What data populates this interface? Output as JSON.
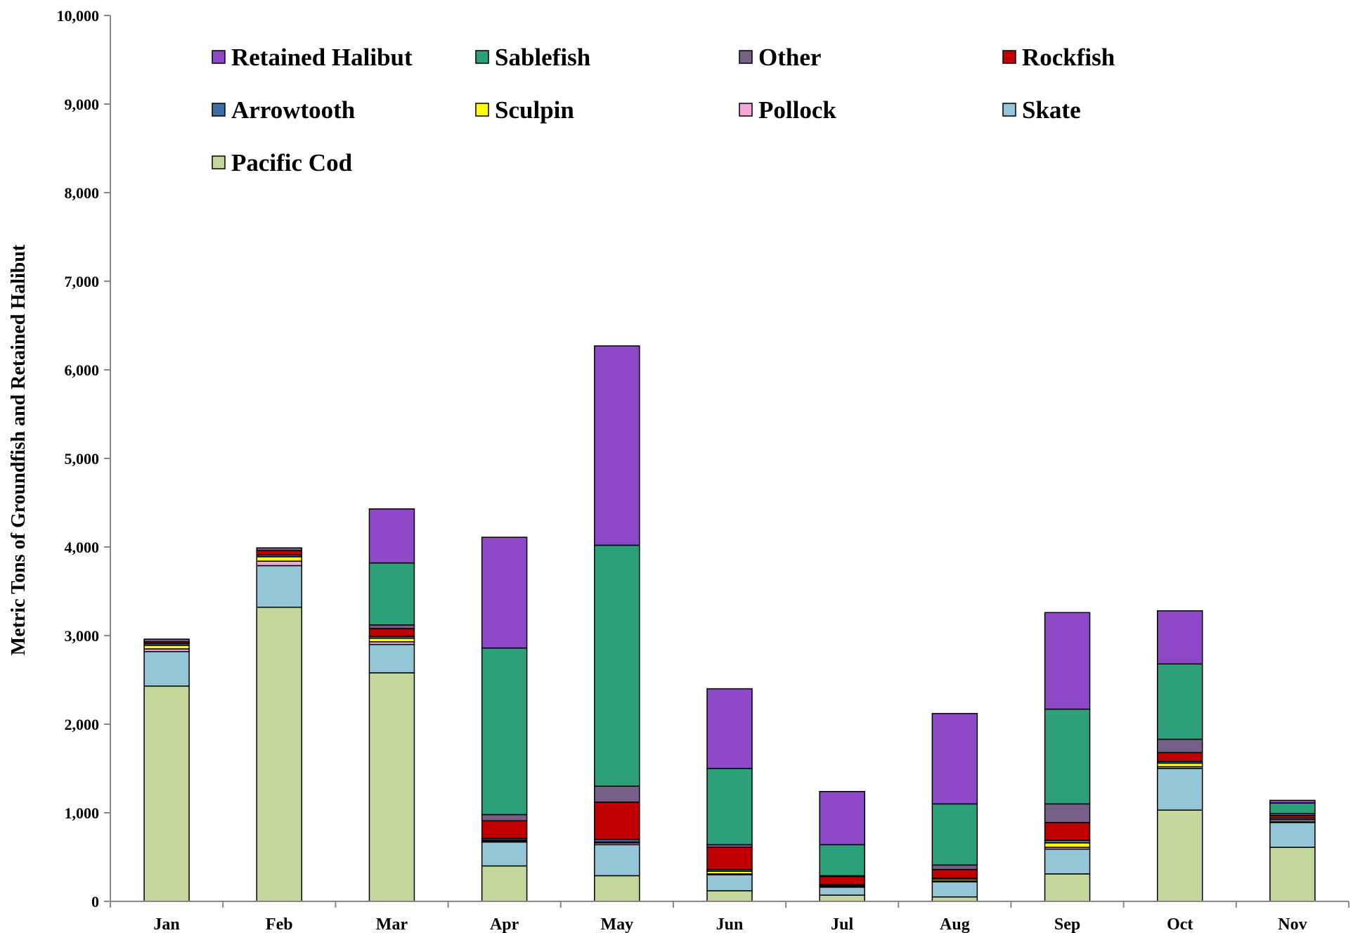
{
  "chart_data": {
    "type": "bar",
    "stacked": true,
    "title": "",
    "xlabel": "",
    "ylabel": "Metric Tons of Groundfish and Retained Halibut",
    "ylim": [
      0,
      10000
    ],
    "yticks": [
      "0",
      "1,000",
      "2,000",
      "3,000",
      "4,000",
      "5,000",
      "6,000",
      "7,000",
      "8,000",
      "9,000",
      "10,000"
    ],
    "grid": false,
    "legend_position": "top-left inside",
    "categories": [
      "Jan",
      "Feb",
      "Mar",
      "Apr",
      "May",
      "Jun",
      "Jul",
      "Aug",
      "Sep",
      "Oct",
      "Nov"
    ],
    "series": [
      {
        "name": "Pacific Cod",
        "color": "#c4d79b",
        "values": [
          2430,
          3320,
          2580,
          400,
          290,
          120,
          70,
          50,
          310,
          1030,
          610
        ]
      },
      {
        "name": "Skate",
        "color": "#93c6d6",
        "values": [
          390,
          470,
          320,
          270,
          350,
          180,
          90,
          170,
          280,
          470,
          280
        ]
      },
      {
        "name": "Pollock",
        "color": "#f4a6d7",
        "values": [
          30,
          50,
          30,
          10,
          20,
          10,
          10,
          10,
          20,
          20,
          10
        ]
      },
      {
        "name": "Sculpin",
        "color": "#ffff00",
        "values": [
          40,
          50,
          40,
          10,
          10,
          30,
          10,
          20,
          50,
          40,
          20
        ]
      },
      {
        "name": "Arrowtooth",
        "color": "#3a6ea5",
        "values": [
          20,
          20,
          20,
          20,
          30,
          20,
          10,
          10,
          30,
          20,
          20
        ]
      },
      {
        "name": "Rockfish",
        "color": "#c00000",
        "values": [
          20,
          50,
          90,
          200,
          420,
          250,
          90,
          100,
          200,
          100,
          30
        ]
      },
      {
        "name": "Other",
        "color": "#76608a",
        "values": [
          30,
          30,
          40,
          70,
          180,
          30,
          10,
          50,
          210,
          150,
          20
        ]
      },
      {
        "name": "Sablefish",
        "color": "#2ca07a",
        "values": [
          0,
          0,
          700,
          1880,
          2720,
          860,
          350,
          690,
          1070,
          850,
          120
        ]
      },
      {
        "name": "Retained Halibut",
        "color": "#8e48c8",
        "values": [
          0,
          0,
          610,
          1250,
          2250,
          900,
          600,
          1020,
          1090,
          600,
          30
        ]
      }
    ],
    "legend_order": [
      "Retained Halibut",
      "Sablefish",
      "Other",
      "Rockfish",
      "Arrowtooth",
      "Sculpin",
      "Pollock",
      "Skate",
      "Pacific Cod"
    ]
  }
}
